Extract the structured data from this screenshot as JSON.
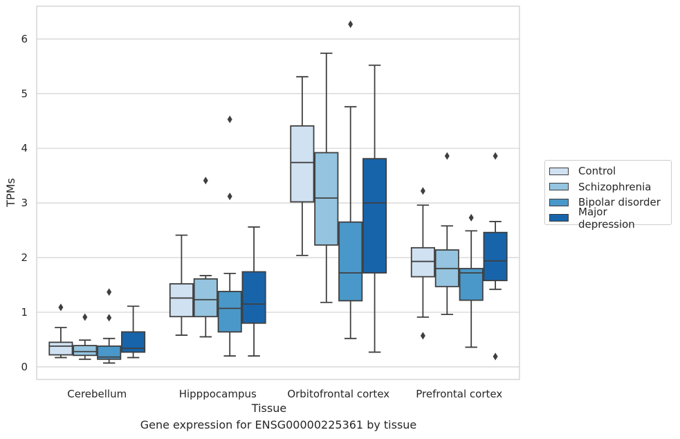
{
  "chart_data": {
    "type": "box",
    "title": "",
    "caption": "Gene expression for ENSG00000225361 by tissue",
    "xlabel": "Tissue",
    "ylabel": "TPMs",
    "ylim": [
      -0.23,
      6.6
    ],
    "yticks": [
      "0",
      "1",
      "2",
      "3",
      "4",
      "5",
      "6"
    ],
    "grid": "horizontal",
    "legend_position": "right",
    "categories": [
      "Cerebellum",
      "Hipppocampus",
      "Orbitofrontal cortex",
      "Prefrontal cortex"
    ],
    "series": [
      {
        "name": "Control",
        "color": "#d0e1f2",
        "boxes": [
          {
            "whislo": 0.17,
            "q1": 0.22,
            "med": 0.38,
            "q3": 0.45,
            "whishi": 0.72,
            "fliers": [
              1.09
            ]
          },
          {
            "whislo": 0.58,
            "q1": 0.92,
            "med": 1.26,
            "q3": 1.52,
            "whishi": 2.41,
            "fliers": []
          },
          {
            "whislo": 2.04,
            "q1": 3.02,
            "med": 3.74,
            "q3": 4.41,
            "whishi": 5.31,
            "fliers": []
          },
          {
            "whislo": 0.91,
            "q1": 1.65,
            "med": 1.93,
            "q3": 2.18,
            "whishi": 2.96,
            "fliers": [
              3.22,
              0.57
            ]
          }
        ]
      },
      {
        "name": "Schizophrenia",
        "color": "#94c4df",
        "boxes": [
          {
            "whislo": 0.14,
            "q1": 0.21,
            "med": 0.28,
            "q3": 0.39,
            "whishi": 0.49,
            "fliers": [
              0.91
            ]
          },
          {
            "whislo": 0.55,
            "q1": 0.92,
            "med": 1.23,
            "q3": 1.61,
            "whishi": 1.67,
            "fliers": [
              3.41
            ]
          },
          {
            "whislo": 1.18,
            "q1": 2.23,
            "med": 3.09,
            "q3": 3.92,
            "whishi": 5.74,
            "fliers": []
          },
          {
            "whislo": 0.96,
            "q1": 1.47,
            "med": 1.8,
            "q3": 2.14,
            "whishi": 2.58,
            "fliers": [
              3.86
            ]
          }
        ]
      },
      {
        "name": "Bipolar disorder",
        "color": "#4a98c9",
        "boxes": [
          {
            "whislo": 0.07,
            "q1": 0.14,
            "med": 0.18,
            "q3": 0.38,
            "whishi": 0.52,
            "fliers": [
              0.9,
              1.37
            ]
          },
          {
            "whislo": 0.2,
            "q1": 0.64,
            "med": 1.07,
            "q3": 1.38,
            "whishi": 1.71,
            "fliers": [
              3.12,
              4.53
            ]
          },
          {
            "whislo": 0.52,
            "q1": 1.21,
            "med": 1.72,
            "q3": 2.65,
            "whishi": 4.76,
            "fliers": [
              6.27
            ]
          },
          {
            "whislo": 0.36,
            "q1": 1.22,
            "med": 1.72,
            "q3": 1.8,
            "whishi": 2.49,
            "fliers": [
              2.73
            ]
          }
        ]
      },
      {
        "name": "Major depression",
        "color": "#1764ab",
        "boxes": [
          {
            "whislo": 0.17,
            "q1": 0.27,
            "med": 0.34,
            "q3": 0.64,
            "whishi": 1.11,
            "fliers": []
          },
          {
            "whislo": 0.2,
            "q1": 0.8,
            "med": 1.15,
            "q3": 1.74,
            "whishi": 2.56,
            "fliers": []
          },
          {
            "whislo": 0.27,
            "q1": 1.72,
            "med": 3.0,
            "q3": 3.81,
            "whishi": 5.52,
            "fliers": []
          },
          {
            "whislo": 1.42,
            "q1": 1.58,
            "med": 1.94,
            "q3": 2.46,
            "whishi": 2.66,
            "fliers": [
              3.86,
              0.19
            ]
          }
        ]
      }
    ]
  }
}
